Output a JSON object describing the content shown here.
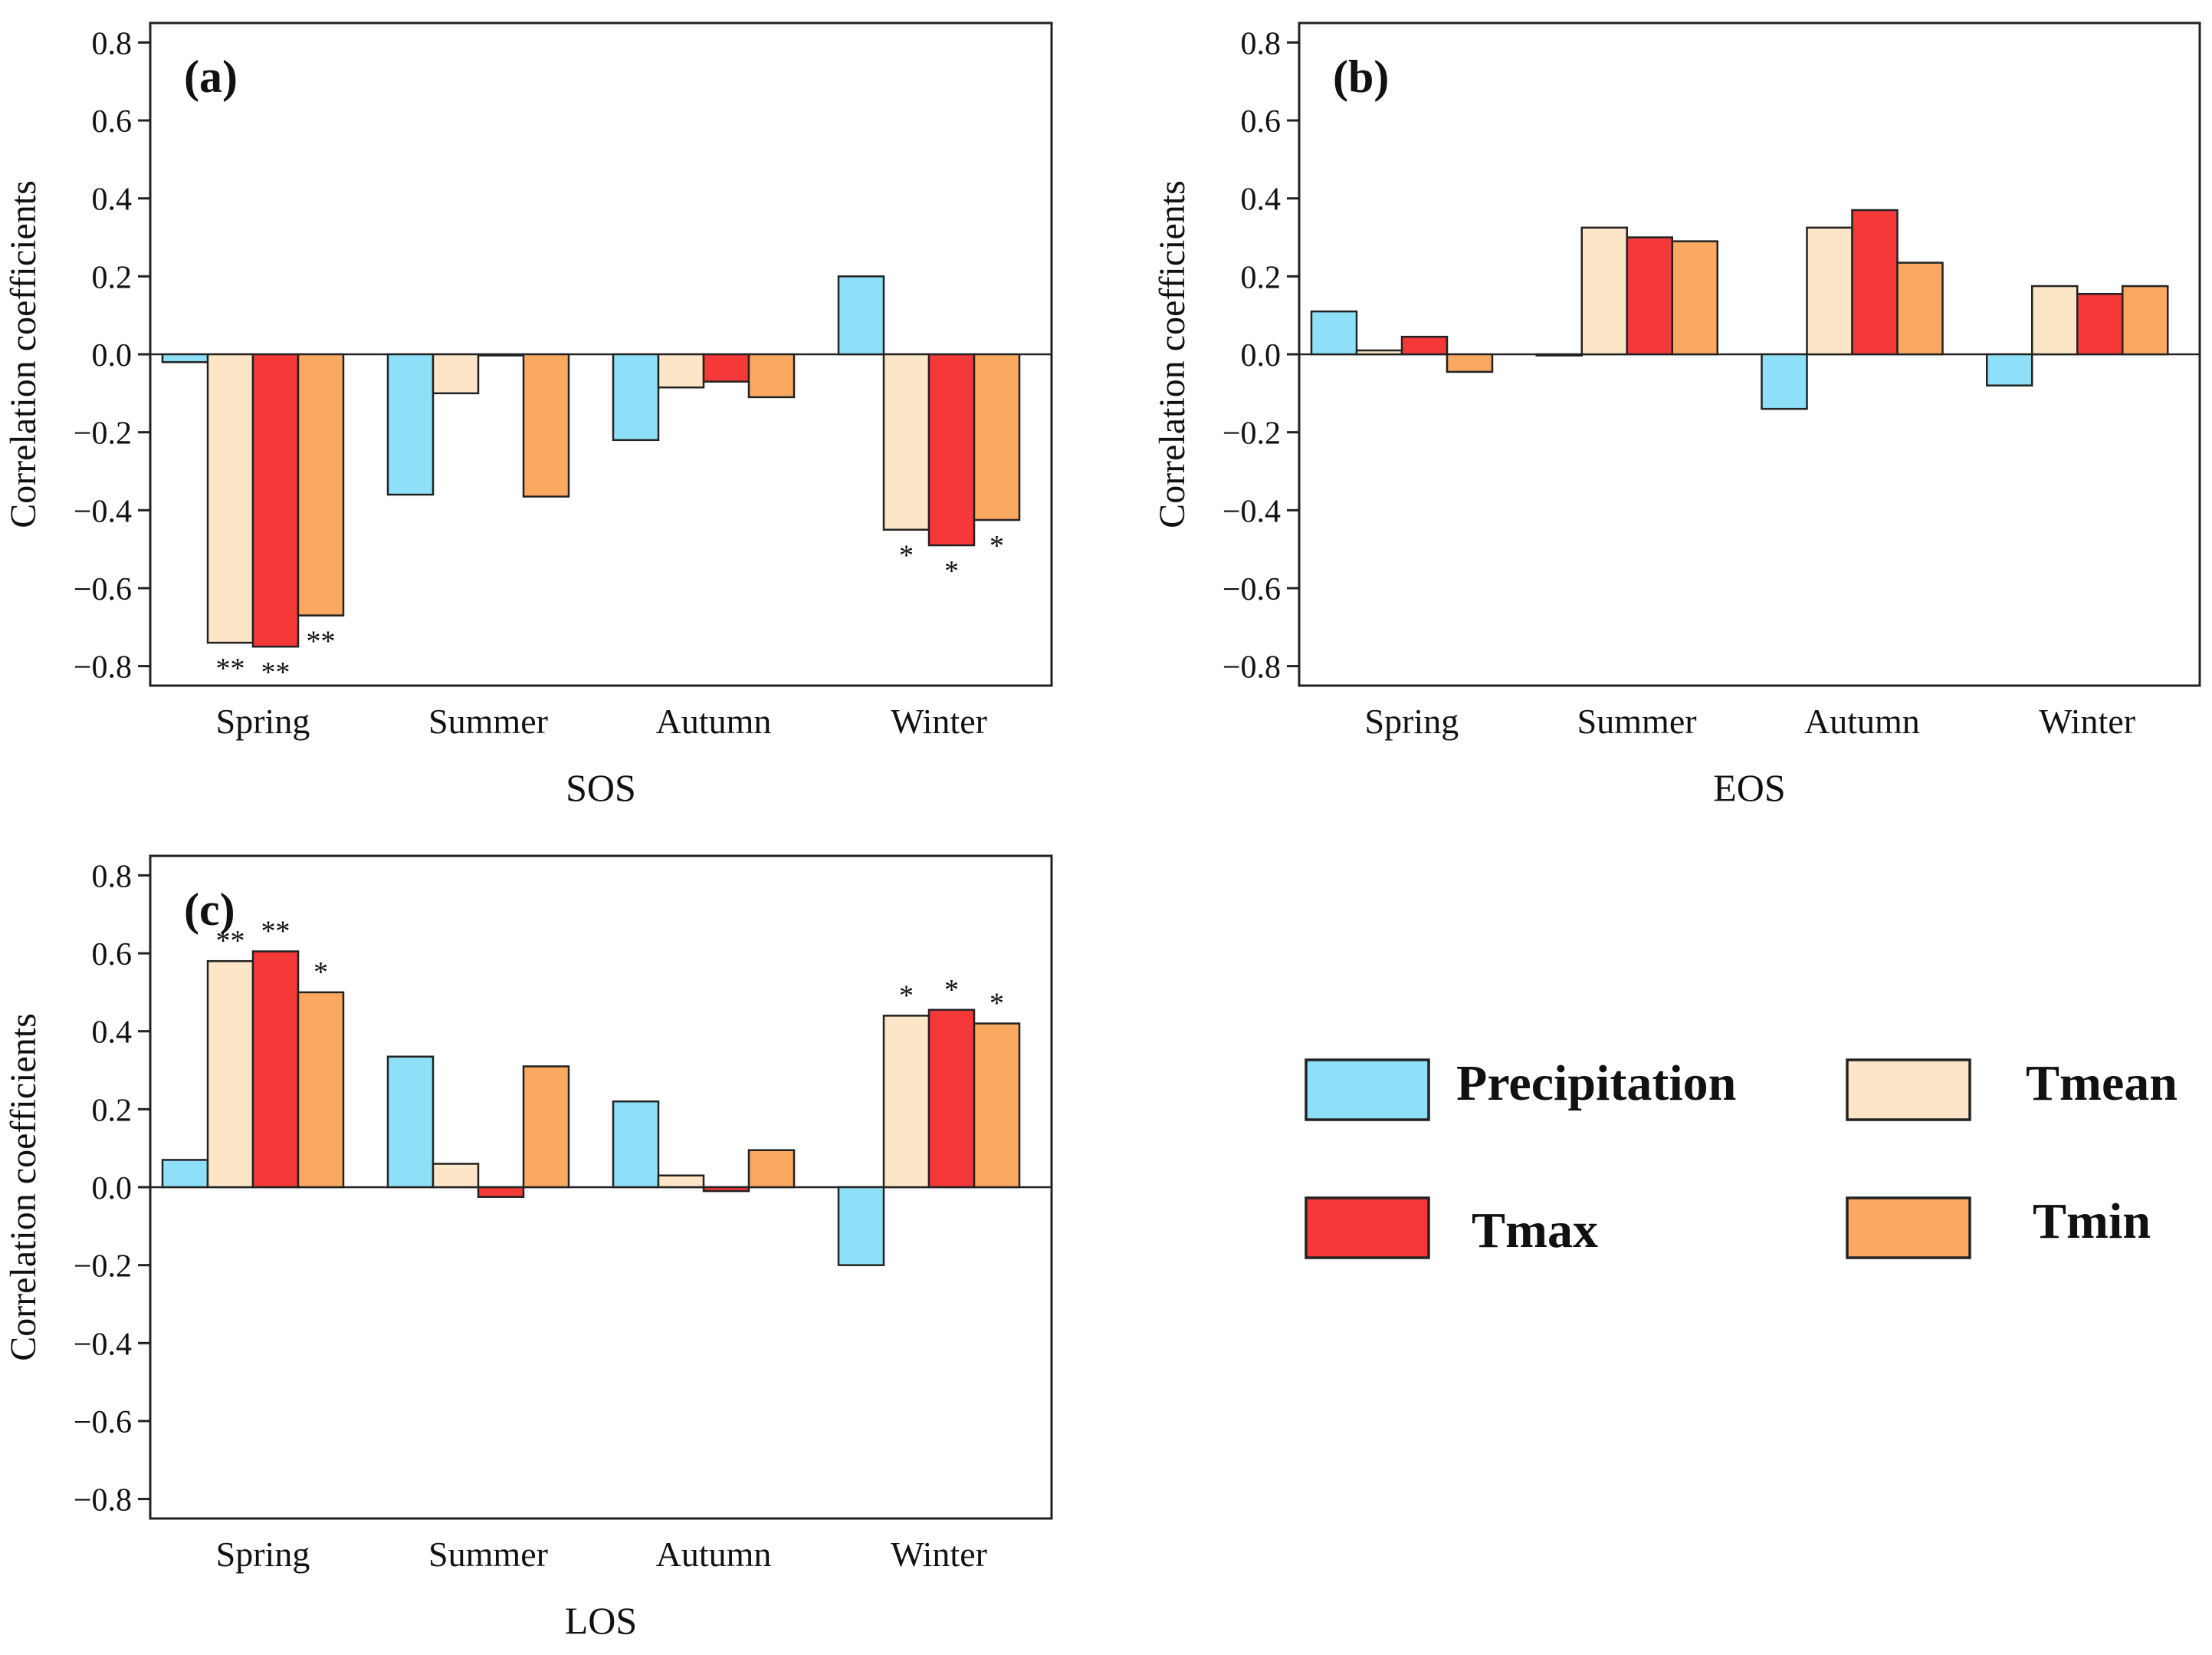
{
  "colors": {
    "Precipitation": "#8ee0f8",
    "Tmean": "#fde6c8",
    "Tmax": "#f53838",
    "Tmin": "#fba860"
  },
  "legend": {
    "items": [
      {
        "key": "Precipitation",
        "label": "Precipitation"
      },
      {
        "key": "Tmean",
        "label": "Tmean"
      },
      {
        "key": "Tmax",
        "label": "Tmax"
      },
      {
        "key": "Tmin",
        "label": "Tmin"
      }
    ]
  },
  "chart_data": [
    {
      "type": "bar",
      "tag": "(a)",
      "title": "",
      "xlabel": "SOS",
      "ylabel": "Correlation coefficients",
      "ylim": [
        -0.85,
        0.85
      ],
      "yticks": [
        "0.8",
        "0.6",
        "0.4",
        "0.2",
        "0.0",
        "−0.2",
        "−0.4",
        "−0.6",
        "−0.8"
      ],
      "categories": [
        "Spring",
        "Summer",
        "Autumn",
        "Winter"
      ],
      "series": [
        {
          "name": "Precipitation",
          "values": [
            -0.02,
            -0.36,
            -0.22,
            0.2
          ],
          "sig": [
            "",
            "",
            "",
            ""
          ]
        },
        {
          "name": "Tmean",
          "values": [
            -0.74,
            -0.1,
            -0.085,
            -0.45
          ],
          "sig": [
            "**",
            "",
            "",
            "*"
          ]
        },
        {
          "name": "Tmax",
          "values": [
            -0.75,
            0.0,
            -0.07,
            -0.49
          ],
          "sig": [
            "**",
            "",
            "",
            "*"
          ]
        },
        {
          "name": "Tmin",
          "values": [
            -0.67,
            -0.365,
            -0.11,
            -0.425
          ],
          "sig": [
            "**",
            "",
            "",
            "*"
          ]
        }
      ]
    },
    {
      "type": "bar",
      "tag": "(b)",
      "title": "",
      "xlabel": "EOS",
      "ylabel": "Correlation coefficients",
      "ylim": [
        -0.85,
        0.85
      ],
      "yticks": [
        "0.8",
        "0.6",
        "0.4",
        "0.2",
        "0.0",
        "−0.2",
        "−0.4",
        "−0.6",
        "−0.8"
      ],
      "categories": [
        "Spring",
        "Summer",
        "Autumn",
        "Winter"
      ],
      "series": [
        {
          "name": "Precipitation",
          "values": [
            0.11,
            0.0,
            -0.14,
            -0.08
          ],
          "sig": [
            "",
            "",
            "",
            ""
          ]
        },
        {
          "name": "Tmean",
          "values": [
            0.01,
            0.325,
            0.325,
            0.175
          ],
          "sig": [
            "",
            "",
            "",
            ""
          ]
        },
        {
          "name": "Tmax",
          "values": [
            0.045,
            0.3,
            0.37,
            0.155
          ],
          "sig": [
            "",
            "",
            "",
            ""
          ]
        },
        {
          "name": "Tmin",
          "values": [
            -0.045,
            0.29,
            0.235,
            0.175
          ],
          "sig": [
            "",
            "",
            "",
            ""
          ]
        }
      ]
    },
    {
      "type": "bar",
      "tag": "(c)",
      "title": "",
      "xlabel": "LOS",
      "ylabel": "Correlation coefficients",
      "ylim": [
        -0.85,
        0.85
      ],
      "yticks": [
        "0.8",
        "0.6",
        "0.4",
        "0.2",
        "0.0",
        "−0.2",
        "−0.4",
        "−0.6",
        "−0.8"
      ],
      "categories": [
        "Spring",
        "Summer",
        "Autumn",
        "Winter"
      ],
      "series": [
        {
          "name": "Precipitation",
          "values": [
            0.07,
            0.335,
            0.22,
            -0.2
          ],
          "sig": [
            "",
            "",
            "",
            ""
          ]
        },
        {
          "name": "Tmean",
          "values": [
            0.58,
            0.06,
            0.03,
            0.44
          ],
          "sig": [
            "**",
            "",
            "",
            "*"
          ]
        },
        {
          "name": "Tmax",
          "values": [
            0.605,
            -0.025,
            -0.01,
            0.455
          ],
          "sig": [
            "**",
            "",
            "",
            "*"
          ]
        },
        {
          "name": "Tmin",
          "values": [
            0.5,
            0.31,
            0.095,
            0.42
          ],
          "sig": [
            "*",
            "",
            "",
            "*"
          ]
        }
      ]
    }
  ]
}
